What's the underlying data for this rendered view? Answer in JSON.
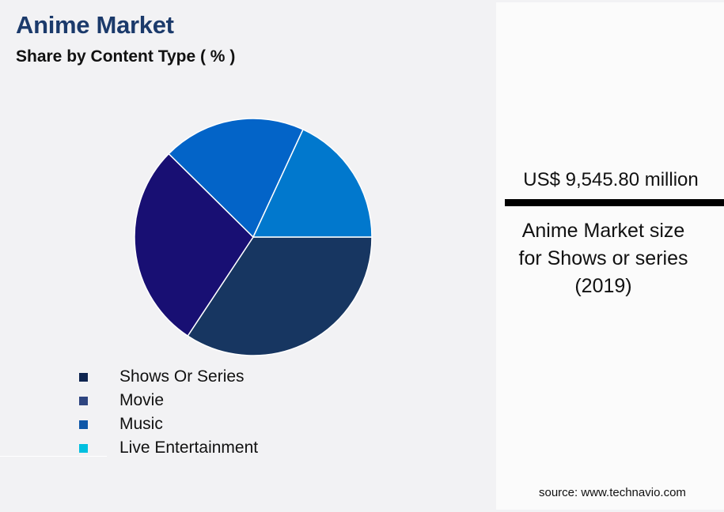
{
  "header": {
    "title": "Anime Market",
    "subtitle": "Share by Content Type ( % )"
  },
  "legend": {
    "items": [
      {
        "label": "Shows Or Series",
        "color": "#0f2550"
      },
      {
        "label": "Movie",
        "color": "#2e4580"
      },
      {
        "label": "Music",
        "color": "#0f57a8"
      },
      {
        "label": "Live Entertainment",
        "color": "#00c0e0"
      }
    ]
  },
  "stat_panel": {
    "value": "US$ 9,545.80 million",
    "caption_line1": "Anime Market size",
    "caption_line2": "for Shows or series",
    "caption_line3": "(2019)"
  },
  "footer": {
    "source": "source: www.technavio.com"
  },
  "chart_data": {
    "type": "pie",
    "title": "Anime Market",
    "subtitle": "Share by Content Type ( % )",
    "categories": [
      "Shows Or Series",
      "Movie",
      "Music",
      "Live Entertainment"
    ],
    "values": [
      34.3,
      28.1,
      19.5,
      18.1
    ],
    "slice_colors": [
      "#173661",
      "#180f73",
      "#0364c8",
      "#0178cd"
    ],
    "legend_position": "bottom-left",
    "labels_shown": false,
    "annotation": "US$ 9,545.80 million — Anime Market size for Shows or series (2019)"
  }
}
